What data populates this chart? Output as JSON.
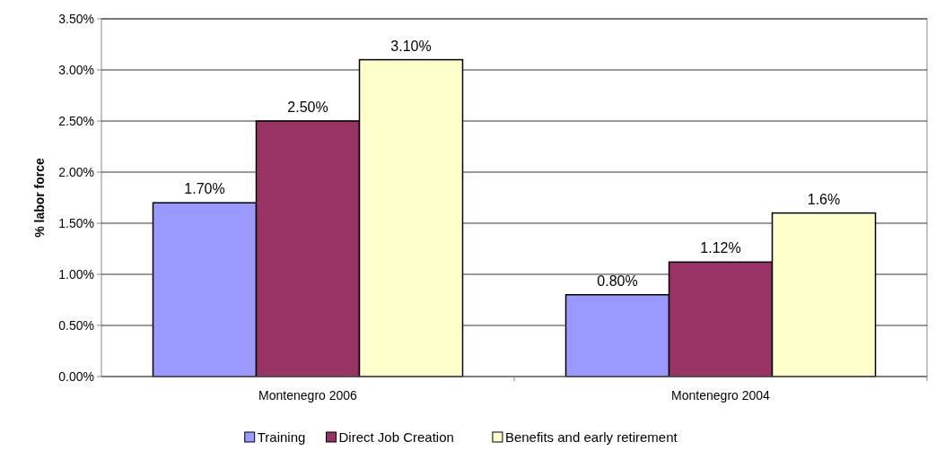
{
  "chart_data": {
    "type": "bar",
    "ylabel": "% labor force",
    "categories": [
      "Montenegro 2006",
      "Montenegro 2004"
    ],
    "series": [
      {
        "name": "Training",
        "color": "#9999ff",
        "values": [
          1.7,
          0.8
        ],
        "value_labels": [
          "1.70%",
          "0.80%"
        ]
      },
      {
        "name": "Direct Job Creation",
        "color": "#993366",
        "values": [
          2.5,
          1.12
        ],
        "value_labels": [
          "2.50%",
          "1.12%"
        ]
      },
      {
        "name": "Benefits and early retirement",
        "color": "#ffffcc",
        "values": [
          3.1,
          1.6
        ],
        "value_labels": [
          "3.10%",
          "1.6%"
        ]
      }
    ],
    "ylim": [
      0,
      3.5
    ],
    "yticks": [
      {
        "value": 0,
        "label": "0.00%"
      },
      {
        "value": 0.5,
        "label": "0.50%"
      },
      {
        "value": 1,
        "label": "1.00%"
      },
      {
        "value": 1.5,
        "label": "1.50%"
      },
      {
        "value": 2,
        "label": "2.00%"
      },
      {
        "value": 2.5,
        "label": "2.50%"
      },
      {
        "value": 3,
        "label": "3.00%"
      },
      {
        "value": 3.5,
        "label": "3.50%"
      }
    ],
    "grid": "y",
    "legend": "bottom"
  }
}
